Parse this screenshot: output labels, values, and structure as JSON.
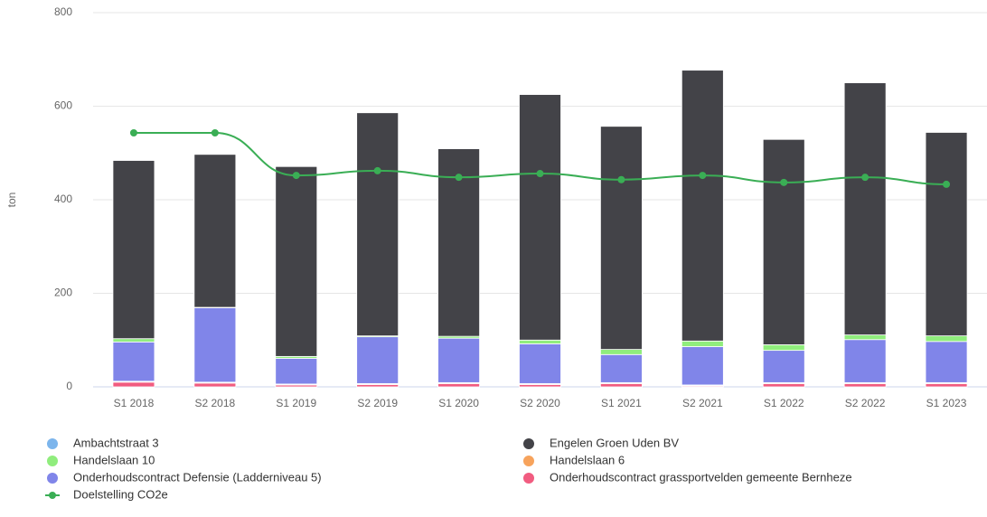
{
  "chart_data": {
    "type": "stacked-bar-line",
    "y_label": "ton",
    "categories": [
      "S1 2018",
      "S2 2018",
      "S1 2019",
      "S2 2019",
      "S1 2020",
      "S2 2020",
      "S1 2021",
      "S2 2021",
      "S1 2022",
      "S2 2022",
      "S1 2023"
    ],
    "series": [
      {
        "name": "Ambachtstraat 3",
        "color": "#7cb5ec",
        "values": [
          1,
          1,
          1,
          1,
          1,
          1,
          1,
          1,
          1,
          1,
          1
        ]
      },
      {
        "name": "Engelen Groen Uden BV",
        "color": "#434348",
        "values": [
          381,
          327,
          406,
          477,
          401,
          525,
          477,
          579,
          439,
          539,
          435
        ]
      },
      {
        "name": "Handelslaan 10",
        "color": "#90ed7d",
        "values": [
          7,
          1,
          4,
          2,
          4,
          8,
          11,
          12,
          12,
          10,
          12
        ]
      },
      {
        "name": "Handelslaan 6",
        "color": "#f7a35c",
        "values": [
          1,
          1,
          1,
          1,
          1,
          1,
          1,
          1,
          1,
          1,
          1
        ]
      },
      {
        "name": "Onderhoudscontract Defensie (Ladderniveau 5)",
        "color": "#8085e9",
        "values": [
          84,
          159,
          55,
          100,
          95,
          85,
          60,
          82,
          69,
          92,
          88
        ]
      },
      {
        "name": "Onderhoudscontract grassportvelden gemeente Bernheze",
        "color": "#f15c80",
        "values": [
          10,
          8,
          4,
          5,
          7,
          5,
          7,
          2,
          7,
          7,
          7
        ]
      },
      {
        "name": "Doelstelling CO2e",
        "color": "#3aae55",
        "type": "line",
        "values": [
          543,
          543,
          452,
          462,
          448,
          456,
          443,
          452,
          437,
          448,
          433
        ]
      }
    ],
    "ylim": [
      0,
      800
    ],
    "yticks": [
      0,
      200,
      400,
      600,
      800
    ],
    "grid": true
  }
}
